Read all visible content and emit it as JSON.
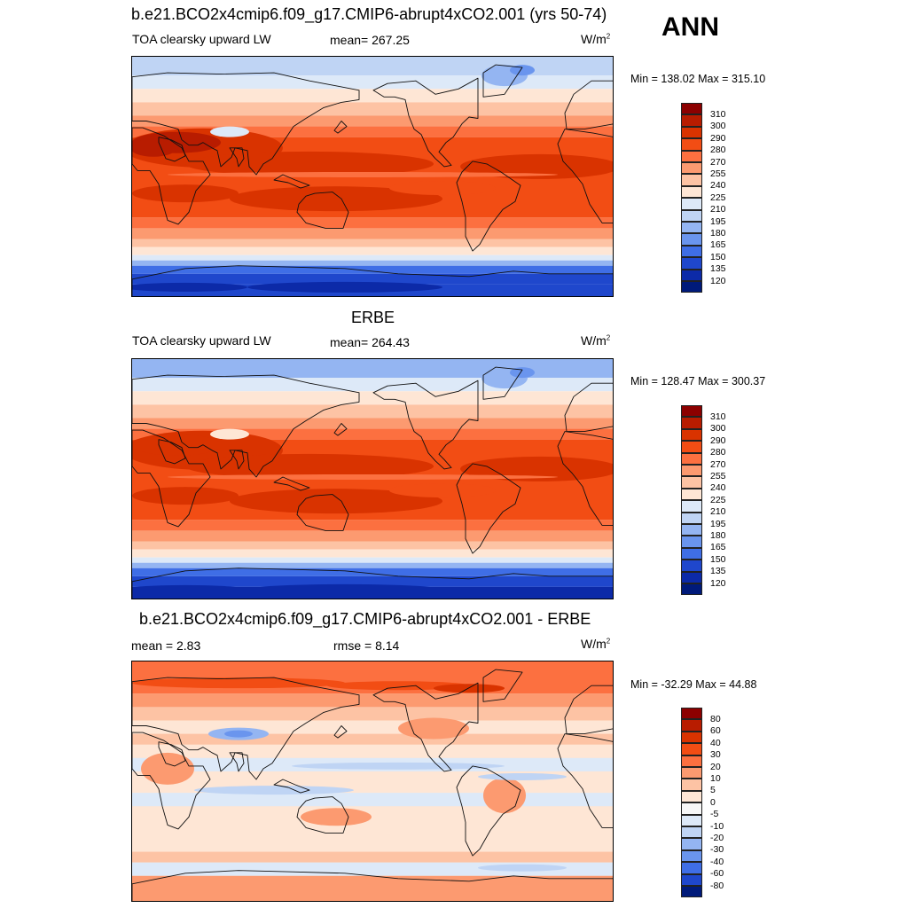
{
  "season": "ANN",
  "panels": [
    {
      "title": "b.e21.BCO2x4cmip6.f09_g17.CMIP6-abrupt4xCO2.001 (yrs 50-74)",
      "left_label": "TOA clearsky upward LW",
      "center_label": "mean= 267.25",
      "units_main": "W/m",
      "units_sup": "2",
      "minmax": "Min = 138.02 Max = 315.10",
      "map_type": "absolute-model",
      "colorbar": {
        "labels": [
          "310",
          "300",
          "290",
          "280",
          "270",
          "255",
          "240",
          "225",
          "210",
          "195",
          "180",
          "165",
          "150",
          "135",
          "120"
        ],
        "colors": [
          "#8c0000",
          "#b81c00",
          "#d93300",
          "#f24d14",
          "#fc7040",
          "#fc9a70",
          "#fdc3a4",
          "#fee6d5",
          "#dde9f8",
          "#bfd4f4",
          "#94b5f2",
          "#6a95ee",
          "#3f6ee6",
          "#1f47cc",
          "#0c2aa8",
          "#001a7a"
        ]
      }
    },
    {
      "title": "ERBE",
      "left_label": "TOA clearsky upward LW",
      "center_label": "mean= 264.43",
      "units_main": "W/m",
      "units_sup": "2",
      "minmax": "Min = 128.47 Max = 300.37",
      "map_type": "absolute-obs",
      "colorbar": {
        "labels": [
          "310",
          "300",
          "290",
          "280",
          "270",
          "255",
          "240",
          "225",
          "210",
          "195",
          "180",
          "165",
          "150",
          "135",
          "120"
        ],
        "colors": [
          "#8c0000",
          "#b81c00",
          "#d93300",
          "#f24d14",
          "#fc7040",
          "#fc9a70",
          "#fdc3a4",
          "#fee6d5",
          "#dde9f8",
          "#bfd4f4",
          "#94b5f2",
          "#6a95ee",
          "#3f6ee6",
          "#1f47cc",
          "#0c2aa8",
          "#001a7a"
        ]
      }
    },
    {
      "title": "b.e21.BCO2x4cmip6.f09_g17.CMIP6-abrupt4xCO2.001 - ERBE",
      "left_label": "mean =   2.83",
      "center_label": "rmse =   8.14",
      "units_main": "W/m",
      "units_sup": "2",
      "minmax": "Min = -32.29 Max =  44.88",
      "map_type": "difference",
      "colorbar": {
        "labels": [
          "80",
          "60",
          "40",
          "30",
          "20",
          "10",
          "5",
          "0",
          "-5",
          "-10",
          "-20",
          "-30",
          "-40",
          "-60",
          "-80"
        ],
        "colors": [
          "#8c0000",
          "#b81c00",
          "#d93300",
          "#f24d14",
          "#fc7040",
          "#fc9a70",
          "#fdc3a4",
          "#fee6d5",
          "#f7f7f7",
          "#dde9f8",
          "#bfd4f4",
          "#94b5f2",
          "#6a95ee",
          "#3f6ee6",
          "#1f47cc",
          "#001a7a"
        ]
      }
    }
  ]
}
